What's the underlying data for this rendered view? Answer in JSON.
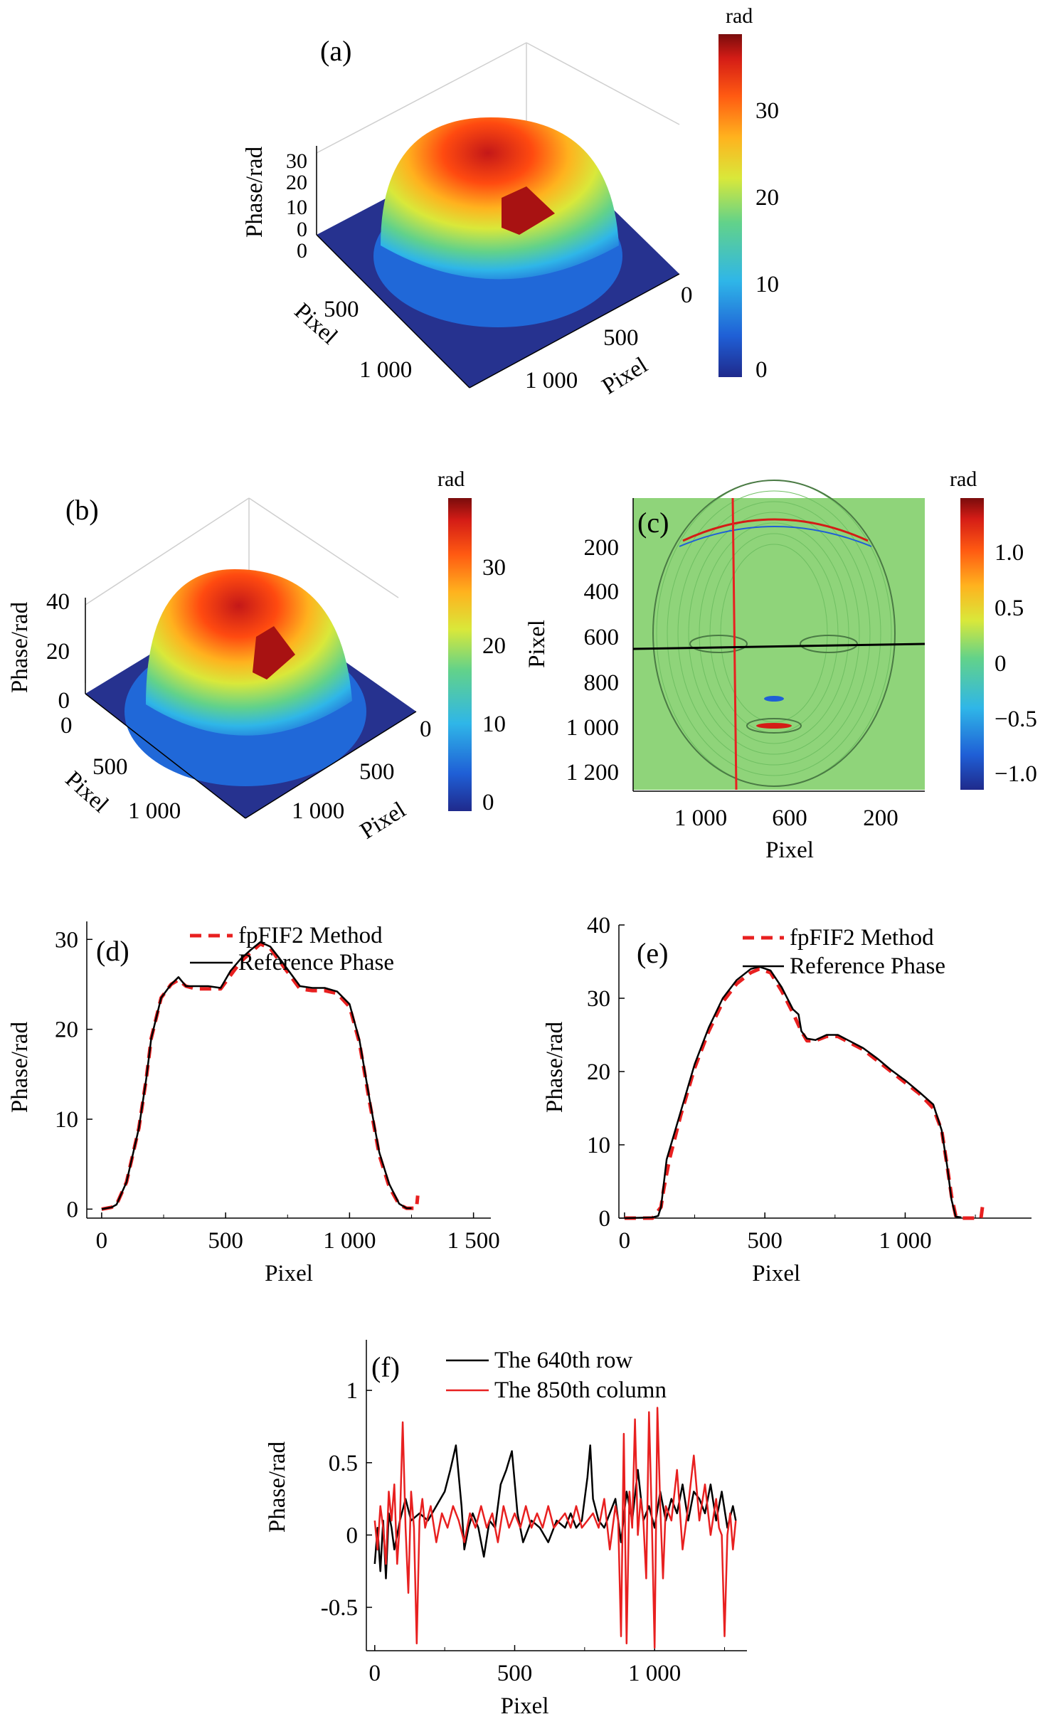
{
  "colors": {
    "colormap": [
      "#1f2a8c",
      "#1f5fd6",
      "#2fb6e8",
      "#62d28a",
      "#d9e83a",
      "#ffb21e",
      "#ff5a12",
      "#d41c16",
      "#7a0c0c"
    ],
    "method": "#e82020",
    "reference": "#000000",
    "row": "#000000",
    "column": "#e82020",
    "background_c": "#8fd47a"
  },
  "panels": {
    "a": {
      "label": "(a)",
      "zlabel": "Phase/rad",
      "zticks": [
        "30",
        "20",
        "10",
        "0",
        "0"
      ],
      "xlabel": "Pixel",
      "ylabel": "Pixel",
      "xticks": [
        "500",
        "1 000"
      ],
      "yticks": [
        "0",
        "500",
        "1 000"
      ],
      "colorbar": {
        "unit": "rad",
        "ticks": [
          "30",
          "20",
          "10",
          "0"
        ]
      }
    },
    "b": {
      "label": "(b)",
      "zlabel": "Phase/rad",
      "zticks": [
        "40",
        "20",
        "0"
      ],
      "xlabel": "Pixel",
      "ylabel": "Pixel",
      "xticks": [
        "0",
        "500",
        "1 000"
      ],
      "yticks": [
        "0",
        "500",
        "1 000"
      ],
      "colorbar": {
        "unit": "rad",
        "ticks": [
          "30",
          "20",
          "10",
          "0"
        ]
      }
    },
    "c": {
      "label": "(c)",
      "ylabel": "Pixel",
      "xlabel": "Pixel",
      "yticks": [
        "200",
        "400",
        "600",
        "800",
        "1 000",
        "1 200"
      ],
      "xticks": [
        "1 000",
        "600",
        "200"
      ],
      "colorbar": {
        "unit": "rad",
        "ticks": [
          "1.0",
          "0.5",
          "0",
          "−0.5",
          "−1.0"
        ]
      }
    }
  },
  "chart_data": [
    {
      "panel": "d",
      "type": "line",
      "label": "(d)",
      "xlabel": "Pixel",
      "ylabel": "Phase/rad",
      "xlim": [
        -60,
        1570
      ],
      "ylim": [
        -1,
        32
      ],
      "xticks": [
        0,
        500,
        1000,
        1500
      ],
      "xtick_labels": [
        "0",
        "500",
        "1 000",
        "1 500"
      ],
      "yticks": [
        0,
        10,
        20,
        30
      ],
      "ytick_labels": [
        "0",
        "10",
        "20",
        "30"
      ],
      "legend": "top-right",
      "series": [
        {
          "name": "fpFIF2 Method",
          "style": "dashed",
          "x": [
            0,
            40,
            60,
            100,
            150,
            180,
            200,
            240,
            280,
            310,
            340,
            380,
            430,
            480,
            520,
            560,
            600,
            640,
            680,
            720,
            760,
            800,
            850,
            900,
            950,
            1000,
            1040,
            1080,
            1120,
            1160,
            1200,
            1230,
            1250,
            1270,
            1275
          ],
          "y": [
            0,
            0.2,
            0.5,
            3,
            9,
            14.5,
            19,
            23.5,
            25,
            25.5,
            24.8,
            24.5,
            24.5,
            24.5,
            26,
            27.5,
            28.5,
            29.5,
            29,
            27.5,
            26,
            24.5,
            24.3,
            24.3,
            24,
            22.5,
            18.5,
            12,
            6,
            2.5,
            0.5,
            0.1,
            0.1,
            0.1,
            1.5
          ]
        },
        {
          "name": "Reference Phase",
          "style": "solid",
          "x": [
            0,
            40,
            60,
            100,
            150,
            180,
            200,
            240,
            280,
            310,
            340,
            380,
            430,
            480,
            520,
            560,
            600,
            640,
            680,
            720,
            760,
            800,
            850,
            900,
            950,
            1000,
            1040,
            1080,
            1120,
            1160,
            1200,
            1230,
            1250
          ],
          "y": [
            0,
            0.2,
            0.5,
            3,
            9,
            14.5,
            19,
            23.5,
            25,
            25.8,
            24.8,
            24.8,
            24.8,
            24.6,
            26.5,
            27.8,
            28.8,
            29.7,
            29.2,
            27.8,
            26.3,
            24.8,
            24.6,
            24.6,
            24.2,
            22.8,
            18.8,
            12.3,
            6.3,
            2.8,
            0.6,
            0.1,
            0.1
          ]
        }
      ]
    },
    {
      "panel": "e",
      "type": "line",
      "label": "(e)",
      "xlabel": "Pixel",
      "ylabel": "Phase/rad",
      "xlim": [
        -20,
        1450
      ],
      "ylim": [
        0,
        40
      ],
      "xticks": [
        0,
        500,
        1000
      ],
      "xtick_labels": [
        "0",
        "500",
        "1 000"
      ],
      "yticks": [
        0,
        10,
        20,
        30,
        40
      ],
      "ytick_labels": [
        "0",
        "10",
        "20",
        "30",
        "40"
      ],
      "legend": "top-right",
      "series": [
        {
          "name": "fpFIF2 Method",
          "style": "dashed",
          "x": [
            0,
            100,
            130,
            140,
            160,
            200,
            250,
            300,
            350,
            400,
            450,
            480,
            520,
            560,
            600,
            630,
            650,
            680,
            720,
            760,
            800,
            850,
            900,
            950,
            1000,
            1050,
            1100,
            1130,
            1150,
            1165,
            1180,
            1200,
            1250,
            1270,
            1275
          ],
          "y": [
            0,
            0,
            1.5,
            4,
            8,
            14,
            20.5,
            25.5,
            29.5,
            32,
            33.5,
            34,
            33.5,
            31,
            28,
            25.5,
            24.2,
            24.2,
            24.8,
            24.8,
            24,
            23,
            21.5,
            20,
            18.5,
            17,
            15,
            12,
            7,
            3,
            0.3,
            0,
            0,
            0,
            1.5
          ]
        },
        {
          "name": "Reference Phase",
          "style": "solid",
          "x": [
            0,
            100,
            120,
            130,
            150,
            200,
            250,
            300,
            350,
            400,
            450,
            480,
            520,
            560,
            600,
            620,
            630,
            650,
            680,
            720,
            760,
            800,
            850,
            900,
            950,
            1000,
            1050,
            1100,
            1130,
            1150,
            1165,
            1180,
            1200
          ],
          "y": [
            0,
            0.1,
            0.3,
            1.5,
            8,
            14.5,
            21,
            26,
            30,
            32.5,
            34,
            34.3,
            33.8,
            31.5,
            28.5,
            27.8,
            25.5,
            24.5,
            24.3,
            25,
            25,
            24.2,
            23.2,
            21.8,
            20.2,
            18.8,
            17.2,
            15.5,
            12,
            7,
            2.5,
            0.2,
            0.1
          ]
        }
      ]
    },
    {
      "panel": "f",
      "type": "line",
      "label": "(f)",
      "xlabel": "Pixel",
      "ylabel": "Phase/rad",
      "xlim": [
        -30,
        1330
      ],
      "ylim": [
        -0.8,
        1.35
      ],
      "xticks": [
        0,
        500,
        1000
      ],
      "xtick_labels": [
        "0",
        "500",
        "1 000"
      ],
      "yticks": [
        -0.5,
        0,
        0.5,
        1
      ],
      "ytick_labels": [
        "-0.5",
        "0",
        "0.5",
        "1"
      ],
      "legend": "top-right",
      "series": [
        {
          "name": "The 640th row",
          "x": [
            0,
            10,
            20,
            30,
            40,
            50,
            60,
            70,
            90,
            110,
            130,
            160,
            190,
            220,
            250,
            270,
            290,
            310,
            320,
            335,
            350,
            370,
            390,
            410,
            430,
            450,
            470,
            490,
            510,
            530,
            560,
            590,
            620,
            650,
            680,
            700,
            720,
            740,
            760,
            770,
            780,
            800,
            820,
            840,
            860,
            880,
            900,
            920,
            940,
            960,
            980,
            1000,
            1020,
            1040,
            1060,
            1080,
            1100,
            1120,
            1140,
            1160,
            1180,
            1200,
            1220,
            1240,
            1260,
            1280,
            1290
          ],
          "y": [
            -0.2,
            0.05,
            -0.25,
            0.1,
            -0.3,
            0.15,
            0.05,
            -0.1,
            0.1,
            0.25,
            0.1,
            0.15,
            0.1,
            0.2,
            0.3,
            0.45,
            0.62,
            0.2,
            -0.1,
            0.05,
            0.15,
            0.05,
            -0.15,
            0.1,
            0.05,
            0.35,
            0.45,
            0.58,
            0.15,
            -0.05,
            0.1,
            0.05,
            -0.05,
            0.1,
            0.05,
            0.15,
            0.05,
            0.1,
            0.4,
            0.62,
            0.25,
            0.1,
            0.05,
            0.15,
            0.25,
            -0.05,
            0.3,
            0.1,
            0.45,
            0.1,
            0.2,
            0.05,
            0.3,
            0.1,
            0.25,
            0.15,
            0.35,
            0.1,
            0.3,
            0.25,
            0.15,
            0.35,
            0.1,
            0.3,
            0.05,
            0.2,
            0.1
          ]
        },
        {
          "name": "The 850th column",
          "x": [
            0,
            10,
            20,
            30,
            40,
            50,
            60,
            70,
            80,
            90,
            100,
            110,
            120,
            130,
            140,
            150,
            160,
            170,
            180,
            200,
            220,
            240,
            260,
            280,
            300,
            320,
            340,
            360,
            380,
            400,
            420,
            440,
            460,
            480,
            500,
            520,
            540,
            560,
            580,
            600,
            620,
            640,
            660,
            680,
            700,
            720,
            740,
            760,
            780,
            800,
            820,
            840,
            860,
            870,
            880,
            890,
            900,
            910,
            920,
            930,
            940,
            950,
            960,
            970,
            980,
            990,
            1000,
            1010,
            1020,
            1030,
            1040,
            1060,
            1080,
            1100,
            1120,
            1140,
            1160,
            1180,
            1200,
            1220,
            1230,
            1240,
            1250,
            1260,
            1270,
            1280,
            1290
          ],
          "y": [
            0.1,
            -0.1,
            0.2,
            0.05,
            -0.2,
            0.3,
            0.1,
            0.35,
            -0.2,
            0.1,
            0.78,
            0.05,
            -0.4,
            0.3,
            0.05,
            -0.75,
            0.1,
            0.25,
            0.05,
            0.2,
            -0.05,
            0.15,
            0.05,
            0.2,
            0.1,
            -0.05,
            0.15,
            0.05,
            0.2,
            0.05,
            0.15,
            -0.05,
            0.2,
            0.05,
            0.15,
            0.05,
            0.2,
            0.05,
            0.15,
            0.05,
            0.2,
            0.05,
            0.1,
            0.15,
            0.05,
            0.2,
            0.05,
            0.1,
            0.15,
            0.05,
            0.25,
            -0.1,
            0.2,
            0.1,
            -0.7,
            0.7,
            -0.75,
            0.3,
            0.05,
            0.8,
            0.0,
            0.25,
            0.1,
            -0.3,
            0.85,
            0.1,
            -0.78,
            0.88,
            0.2,
            -0.3,
            0.2,
            0.1,
            0.45,
            -0.1,
            0.2,
            0.55,
            0.1,
            0.35,
            0.0,
            0.25,
            0.05,
            0.0,
            -0.7,
            0.0,
            0.15,
            -0.1,
            0.1
          ]
        }
      ]
    }
  ]
}
